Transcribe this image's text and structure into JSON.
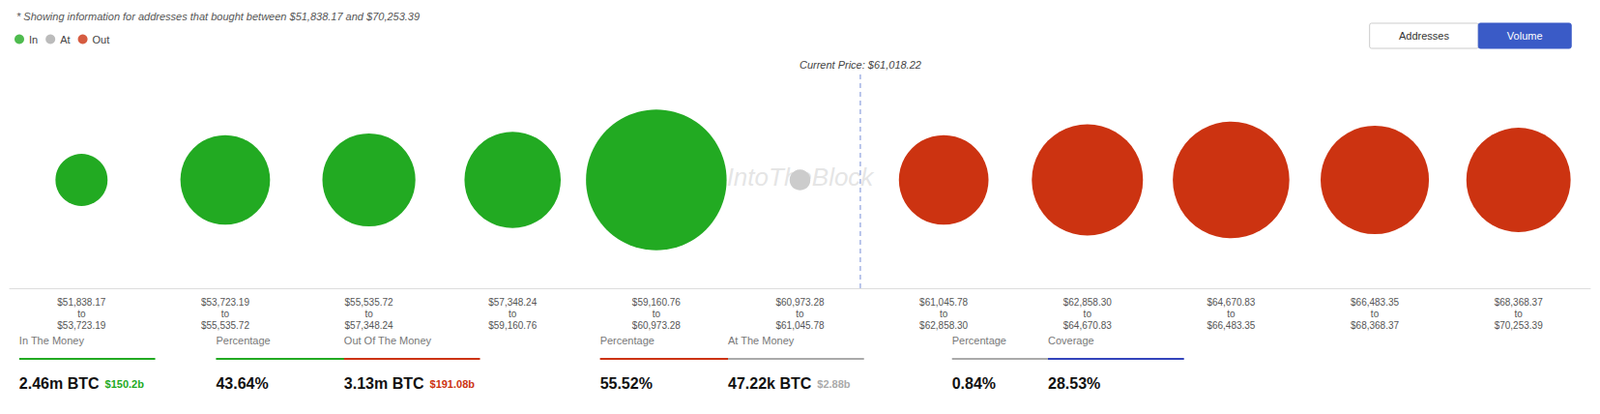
{
  "chart_data": {
    "type": "scatter",
    "marker": "circle",
    "title": "* Showing information for addresses that bought between $51,838.17 and $70,253.39",
    "categories": [
      "$51,838.17\nto\n$53,723.19",
      "$53,723.19\nto\n$55,535.72",
      "$55,535.72\nto\n$57,348.24",
      "$57,348.24\nto\n$59,160.76",
      "$59,160.76\nto\n$60,973.28",
      "$60,973.28\nto\n$61,045.78",
      "$61,045.78\nto\n$62,858.30",
      "$62,858.30\nto\n$64,670.83",
      "$64,670.83\nto\n$66,483.35",
      "$66,483.35\nto\n$68,368.37",
      "$68,368.37\nto\n$70,253.39"
    ],
    "series": [
      {
        "name": "In",
        "color": "#22aa22",
        "sizes": [
          2200,
          6500,
          7000,
          7500,
          16000,
          null,
          null,
          null,
          null,
          null,
          null
        ]
      },
      {
        "name": "At",
        "color": "#aaaaaa",
        "colors": [
          null,
          null,
          null,
          null,
          null,
          "#cccccc",
          null,
          null,
          null,
          null,
          null
        ],
        "sizes": [
          null,
          null,
          null,
          null,
          null,
          350,
          null,
          null,
          null,
          null,
          null
        ]
      },
      {
        "name": "Out",
        "color": "#cc3311",
        "sizes": [
          null,
          null,
          null,
          null,
          null,
          null,
          6500,
          10000,
          11000,
          9500,
          8800
        ]
      }
    ],
    "tick_labels": "x",
    "grid": false,
    "legend": "upper left",
    "annotations": [
      {
        "text": "Current Price: $61,018.22",
        "color": "#3a5bc7",
        "line_style": "dashed"
      }
    ],
    "watermark": "IntoTheBlock",
    "buttons": [
      "Addresses",
      "Volume"
    ],
    "stats": [
      {
        "label": "In The Money",
        "color": "#22aa22",
        "value": "2.46m BTC",
        "subvalue": "$150.2b"
      },
      {
        "label": "Percentage",
        "color": "#22aa22",
        "value": "43.64%"
      },
      {
        "label": "Out Of The Money",
        "color": "#cc3311",
        "value": "3.13m BTC",
        "subvalue": "$191.08b"
      },
      {
        "label": "Percentage",
        "color": "#cc3311",
        "value": "55.52%"
      },
      {
        "label": "At The Money",
        "color": "#aaaaaa",
        "value": "47.22k BTC",
        "subvalue": "$2.88b"
      },
      {
        "label": "Percentage",
        "color": "#aaaaaa",
        "value": "0.84%"
      },
      {
        "label": "Coverage",
        "color": "#3344bb",
        "value": "28.53%"
      }
    ]
  }
}
